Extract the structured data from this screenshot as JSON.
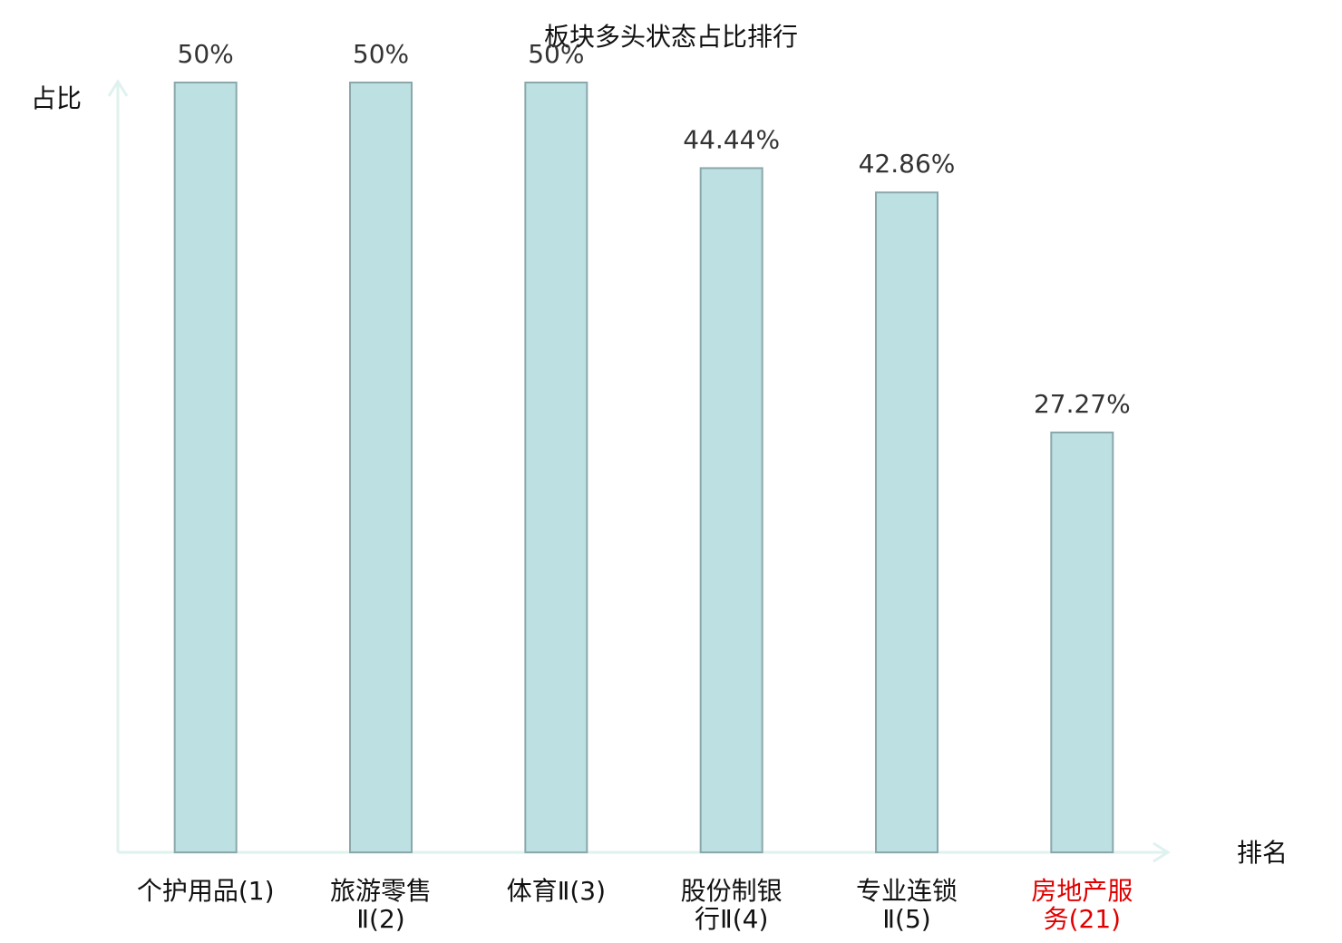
{
  "chart_data": {
    "type": "bar",
    "title": "板块多头状态占比排行",
    "y_label": "占比",
    "x_label": "排名",
    "categories": [
      "个护用品(1)",
      "旅游零售Ⅱ(2)",
      "体育Ⅱ(3)",
      "股份制银行Ⅱ(4)",
      "专业连锁Ⅱ(5)",
      "房地产服务(21)"
    ],
    "values": [
      50,
      50,
      50,
      44.44,
      42.86,
      27.27
    ],
    "value_labels": [
      "50%",
      "50%",
      "50%",
      "44.44%",
      "42.86%",
      "27.27%"
    ],
    "label_colors": [
      "#111111",
      "#111111",
      "#111111",
      "#111111",
      "#111111",
      "#e00000"
    ],
    "color": "#bde0e3",
    "edge_color": "#8aa8ab",
    "axis_color": "#dff2ef",
    "ylim": [
      0,
      50
    ]
  }
}
